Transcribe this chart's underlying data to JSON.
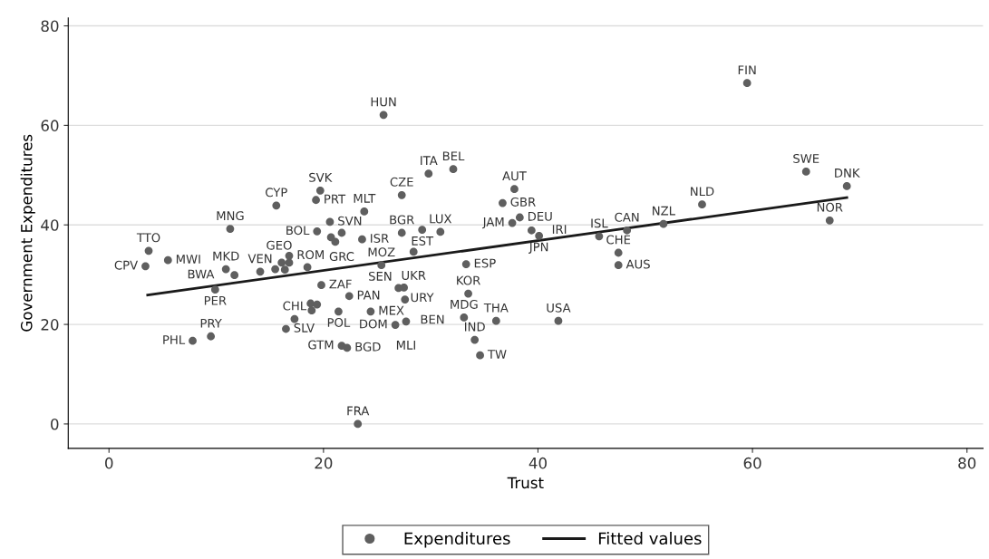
{
  "chart_data": {
    "type": "scatter",
    "xlabel": "Trust",
    "ylabel": "Government Expenditures",
    "xlim": [
      -3.8,
      81.5
    ],
    "ylim": [
      -4.9,
      81.6
    ],
    "xticks": [
      0,
      20,
      40,
      60,
      80
    ],
    "yticks": [
      0,
      20,
      40,
      60,
      80
    ],
    "grid": "y",
    "legend": "bottom",
    "series": [
      {
        "name": "Expenditures",
        "marker": "circle",
        "color": "#5f5f5f",
        "x": [
          3.7,
          3.4,
          5.5,
          11.3,
          15.6,
          19.7,
          19.3,
          20.6,
          19.4,
          20.7,
          21.7,
          21.1,
          23.6,
          23.8,
          27.3,
          27.3,
          10.9,
          11.7,
          14.1,
          15.5,
          16.4,
          16.1,
          16.8,
          16.8,
          18.5,
          9.9,
          19.8,
          18.8,
          19.4,
          18.9,
          22.4,
          21.4,
          24.4,
          17.3,
          16.5,
          9.5,
          7.8,
          21.7,
          22.2,
          25.6,
          29.8,
          32.1,
          37.8,
          36.7,
          38.3,
          37.6,
          39.4,
          40.1,
          45.7,
          29.2,
          30.9,
          28.4,
          25.4,
          33.3,
          27.0,
          27.5,
          33.5,
          27.6,
          33.1,
          36.1,
          41.9,
          27.7,
          26.7,
          34.1,
          34.6,
          23.2,
          48.3,
          47.5,
          47.5,
          51.7,
          55.3,
          65.0,
          68.8,
          67.2,
          59.5
        ],
        "values": [
          34.8,
          31.7,
          32.9,
          39.2,
          43.9,
          46.9,
          45.0,
          40.6,
          38.7,
          37.5,
          38.4,
          36.6,
          37.1,
          42.7,
          46.0,
          38.4,
          31.1,
          29.9,
          30.6,
          31.1,
          31.0,
          32.4,
          32.4,
          33.8,
          31.5,
          27.0,
          27.9,
          24.2,
          24.0,
          22.8,
          25.7,
          22.6,
          22.6,
          21.1,
          19.1,
          17.6,
          16.7,
          15.7,
          15.3,
          62.1,
          50.3,
          51.2,
          47.2,
          44.4,
          41.5,
          40.4,
          38.9,
          37.8,
          37.7,
          39.0,
          38.6,
          34.6,
          31.9,
          32.1,
          27.3,
          27.4,
          26.2,
          25.0,
          21.4,
          20.7,
          20.7,
          20.6,
          19.9,
          16.9,
          13.8,
          0.0,
          38.9,
          34.4,
          31.9,
          40.2,
          44.1,
          50.7,
          47.8,
          40.9,
          68.5
        ]
      },
      {
        "name": "Fitted values",
        "type": "line",
        "color": "#1a1a1a",
        "line_style": "solid",
        "x": [
          3.6,
          68.8
        ],
        "values": [
          25.9,
          45.5
        ]
      }
    ],
    "annotations": [
      {
        "text": "TTO",
        "x": 3.7,
        "y": 34.8
      },
      {
        "text": "CPV",
        "x": 3.4,
        "y": 31.7
      },
      {
        "text": "MWI",
        "x": 5.5,
        "y": 32.9
      },
      {
        "text": "MNG",
        "x": 11.3,
        "y": 39.2
      },
      {
        "text": "CYP",
        "x": 15.6,
        "y": 43.9
      },
      {
        "text": "SVK",
        "x": 19.7,
        "y": 46.9
      },
      {
        "text": "PRT",
        "x": 19.3,
        "y": 45.0
      },
      {
        "text": "SVN",
        "x": 20.6,
        "y": 40.6
      },
      {
        "text": "BOL",
        "x": 19.4,
        "y": 38.7
      },
      {
        "text": "GRC",
        "x": 21.7,
        "y": 38.4
      },
      {
        "text": "ISR",
        "x": 23.6,
        "y": 37.1
      },
      {
        "text": "MLT",
        "x": 23.8,
        "y": 42.7
      },
      {
        "text": "CZE",
        "x": 27.3,
        "y": 46.0
      },
      {
        "text": "BGR",
        "x": 27.3,
        "y": 38.4
      },
      {
        "text": "MKD",
        "x": 10.9,
        "y": 31.1
      },
      {
        "text": "BWA",
        "x": 11.7,
        "y": 29.9
      },
      {
        "text": "VEN",
        "x": 14.1,
        "y": 30.6
      },
      {
        "text": "ROM",
        "x": 16.8,
        "y": 33.8
      },
      {
        "text": "GEO",
        "x": 18.5,
        "y": 31.5
      },
      {
        "text": "PER",
        "x": 9.9,
        "y": 27.0
      },
      {
        "text": "ZAF",
        "x": 19.8,
        "y": 27.9
      },
      {
        "text": "PAN",
        "x": 22.4,
        "y": 25.7
      },
      {
        "text": "POL",
        "x": 21.4,
        "y": 22.6
      },
      {
        "text": "MEX",
        "x": 24.4,
        "y": 22.6
      },
      {
        "text": "CHL",
        "x": 17.3,
        "y": 21.1
      },
      {
        "text": "SLV",
        "x": 16.5,
        "y": 19.1
      },
      {
        "text": "PRY",
        "x": 9.5,
        "y": 17.6
      },
      {
        "text": "PHL",
        "x": 7.8,
        "y": 16.7
      },
      {
        "text": "GTM",
        "x": 21.7,
        "y": 15.7
      },
      {
        "text": "BGD",
        "x": 22.2,
        "y": 15.3
      },
      {
        "text": "HUN",
        "x": 25.6,
        "y": 62.1
      },
      {
        "text": "ITA",
        "x": 29.8,
        "y": 50.3
      },
      {
        "text": "BEL",
        "x": 32.1,
        "y": 51.2
      },
      {
        "text": "AUT",
        "x": 37.8,
        "y": 47.2
      },
      {
        "text": "GBR",
        "x": 36.7,
        "y": 44.4
      },
      {
        "text": "DEU",
        "x": 38.3,
        "y": 41.5
      },
      {
        "text": "JAM",
        "x": 37.6,
        "y": 40.4
      },
      {
        "text": "IRI",
        "x": 39.4,
        "y": 38.9
      },
      {
        "text": "JPN",
        "x": 40.1,
        "y": 37.8
      },
      {
        "text": "ISL",
        "x": 45.7,
        "y": 37.7
      },
      {
        "text": "EST",
        "x": 29.2,
        "y": 39.0
      },
      {
        "text": "LUX",
        "x": 30.9,
        "y": 38.6
      },
      {
        "text": "UKR",
        "x": 28.4,
        "y": 34.6
      },
      {
        "text": "MOZ",
        "x": 25.4,
        "y": 31.9
      },
      {
        "text": "ESP",
        "x": 33.3,
        "y": 32.1
      },
      {
        "text": "SEN",
        "x": 27.0,
        "y": 27.3
      },
      {
        "text": "URY",
        "x": 27.5,
        "y": 27.4
      },
      {
        "text": "KOR",
        "x": 33.5,
        "y": 26.2
      },
      {
        "text": "BEN",
        "x": 27.6,
        "y": 25.0
      },
      {
        "text": "MDG",
        "x": 33.1,
        "y": 21.4
      },
      {
        "text": "THA",
        "x": 36.1,
        "y": 20.7
      },
      {
        "text": "USA",
        "x": 41.9,
        "y": 20.7
      },
      {
        "text": "MLI",
        "x": 27.7,
        "y": 20.6
      },
      {
        "text": "DOM",
        "x": 26.7,
        "y": 19.9
      },
      {
        "text": "IND",
        "x": 34.1,
        "y": 16.9
      },
      {
        "text": "TW",
        "x": 34.6,
        "y": 13.8
      },
      {
        "text": "FRA",
        "x": 23.2,
        "y": 0.0
      },
      {
        "text": "CAN",
        "x": 48.3,
        "y": 38.9
      },
      {
        "text": "CHE",
        "x": 47.5,
        "y": 34.4
      },
      {
        "text": "AUS",
        "x": 47.5,
        "y": 31.9
      },
      {
        "text": "NZL",
        "x": 51.7,
        "y": 40.2
      },
      {
        "text": "NLD",
        "x": 55.3,
        "y": 44.1
      },
      {
        "text": "SWE",
        "x": 65.0,
        "y": 50.7
      },
      {
        "text": "DNK",
        "x": 68.8,
        "y": 47.8
      },
      {
        "text": "NOR",
        "x": 67.2,
        "y": 40.9
      },
      {
        "text": "FIN",
        "x": 59.5,
        "y": 68.5
      }
    ]
  }
}
